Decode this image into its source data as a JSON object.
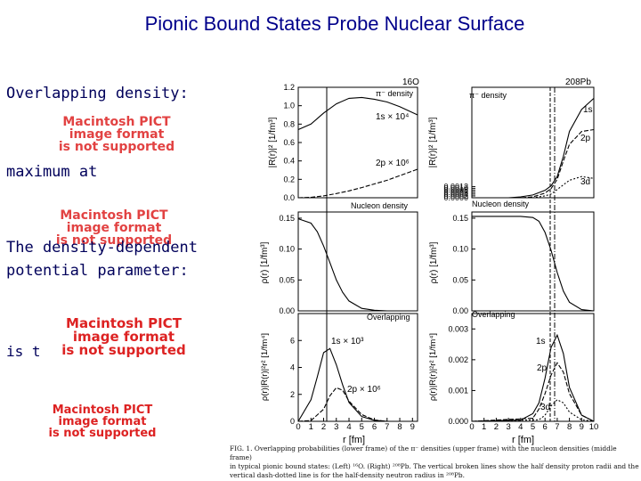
{
  "slide": {
    "title": "Pionic Bound States Probe Nuclear Surface",
    "overlapping_label": "Overlapping density:",
    "maximum_label": "maximum at",
    "param_line1": "The density-dependent",
    "param_line2": "potential parameter:",
    "is_prefix": "is t",
    "pict_placeholder": [
      "Macintosh PICT",
      "image format",
      "is not supported"
    ]
  },
  "figure": {
    "caption_line1": "FIG. 1. Overlapping probabilities (lower frame) of the π⁻ densities (upper frame) with the nucleon densities (middle frame)",
    "caption_line2": "in typical pionic bound states: (Left) ¹⁶O. (Right) ²⁰⁸Pb. The vertical broken lines show the half density proton radii and the",
    "caption_line3": "vertical dash-dotted line is for the half-density neutron radius in ²⁰⁸Pb.",
    "left_nucleus": "16O",
    "right_nucleus": "208Pb",
    "x_axis_label": "r [fm]",
    "x_ticks": [
      "0",
      "1",
      "2",
      "3",
      "4",
      "5",
      "6",
      "7",
      "8",
      "9",
      "10"
    ],
    "frame_titles": {
      "pi_density": "π⁻ density",
      "nucleon_density": "Nucleon density",
      "overlapping": "Overlapping"
    },
    "y_labels": {
      "top": "|R(r)|² [1/fm³]",
      "middle": "ρ(r) [1/fm³]",
      "bottom": "ρ(r)|R(r)|²r² [1/fm⁴]"
    },
    "annotations": {
      "left_top_1s": "1s × 10⁴",
      "left_top_2p": "2p × 10⁶",
      "left_bot_1s": "1s × 10³",
      "left_bot_2p": "2p × 10⁶",
      "right_1s": "1s",
      "right_2p": "2p",
      "right_3d": "3d"
    }
  },
  "chart_data": [
    {
      "type": "line",
      "panel": "16O π⁻ density",
      "ylabel": "|R(r)|² [1/fm³]",
      "xlim": [
        0,
        9.4
      ],
      "ylim": [
        0,
        1.2
      ],
      "yticks": [
        "0.0",
        "0.2",
        "0.4",
        "0.6",
        "0.8",
        "1.0",
        "1.2"
      ],
      "series": [
        {
          "name": "1s × 10⁴",
          "x": [
            0,
            1,
            2,
            3,
            4,
            5,
            6,
            7,
            8,
            9.4
          ],
          "y": [
            0.74,
            0.8,
            0.92,
            1.02,
            1.08,
            1.09,
            1.07,
            1.04,
            0.99,
            0.9
          ]
        },
        {
          "name": "2p × 10⁶",
          "x": [
            0,
            1,
            2,
            3,
            4,
            5,
            6,
            7,
            8,
            9.4
          ],
          "y": [
            0.0,
            0.005,
            0.02,
            0.045,
            0.075,
            0.11,
            0.15,
            0.19,
            0.24,
            0.31
          ]
        }
      ]
    },
    {
      "type": "line",
      "panel": "208Pb π⁻ density",
      "ylabel": "|R(r)|² [1/fm³]",
      "xlim": [
        0,
        10
      ],
      "ylim": [
        0,
        0.012
      ],
      "yticks": [
        "0.0000",
        "0.0002",
        "0.0004",
        "0.0006",
        "0.0008",
        "0.0010",
        "0.0012"
      ],
      "series": [
        {
          "name": "1s",
          "x": [
            0,
            3,
            4,
            5,
            6,
            6.5,
            7,
            7.5,
            8,
            9,
            10
          ],
          "y": [
            0,
            0,
            0.0001,
            0.0003,
            0.0008,
            0.0013,
            0.0023,
            0.0045,
            0.0072,
            0.0096,
            0.0108
          ]
        },
        {
          "name": "2p",
          "x": [
            0,
            4,
            5,
            6,
            6.5,
            7,
            7.5,
            8,
            9,
            10
          ],
          "y": [
            0,
            0,
            0.0001,
            0.0005,
            0.001,
            0.002,
            0.004,
            0.0058,
            0.0072,
            0.0074
          ]
        },
        {
          "name": "3d",
          "x": [
            0,
            5,
            6,
            6.5,
            7,
            7.5,
            8,
            9,
            10
          ],
          "y": [
            0,
            0,
            0.0002,
            0.0004,
            0.0009,
            0.0014,
            0.0019,
            0.0023,
            0.0021
          ]
        }
      ]
    },
    {
      "type": "line",
      "panel": "16O nucleon density",
      "ylabel": "ρ(r) [1/fm³]",
      "xlim": [
        0,
        9.4
      ],
      "ylim": [
        0,
        0.16
      ],
      "yticks": [
        "0.00",
        "0.05",
        "0.10",
        "0.15"
      ],
      "series": [
        {
          "name": "Nucleon density",
          "x": [
            0,
            1,
            1.5,
            2,
            2.5,
            3,
            3.5,
            4,
            5,
            6,
            7,
            8,
            9
          ],
          "y": [
            0.149,
            0.142,
            0.128,
            0.105,
            0.078,
            0.05,
            0.03,
            0.016,
            0.004,
            0.001,
            0.0,
            0.0,
            0.0
          ]
        }
      ]
    },
    {
      "type": "line",
      "panel": "208Pb nucleon density",
      "ylabel": "ρ(r) [1/fm³]",
      "xlim": [
        0,
        10
      ],
      "ylim": [
        0,
        0.16
      ],
      "yticks": [
        "0.00",
        "0.05",
        "0.10",
        "0.15"
      ],
      "series": [
        {
          "name": "Nucleon density",
          "x": [
            0,
            4,
            5,
            5.5,
            6,
            6.5,
            7,
            7.5,
            8,
            9,
            10
          ],
          "y": [
            0.153,
            0.153,
            0.151,
            0.145,
            0.127,
            0.098,
            0.062,
            0.032,
            0.014,
            0.002,
            0.0
          ]
        }
      ]
    },
    {
      "type": "line",
      "panel": "16O overlapping",
      "ylabel": "ρ(r)|R(r)|²r² [1/fm⁴]",
      "xlim": [
        0,
        9.4
      ],
      "ylim": [
        0,
        8
      ],
      "yticks": [
        "0",
        "2",
        "4",
        "6"
      ],
      "series": [
        {
          "name": "1s × 10³",
          "x": [
            0,
            1,
            1.5,
            2,
            2.5,
            3,
            3.5,
            4,
            5,
            6,
            7
          ],
          "y": [
            0,
            1.6,
            3.3,
            5.1,
            5.4,
            4.2,
            2.7,
            1.4,
            0.35,
            0.08,
            0.0
          ]
        },
        {
          "name": "2p × 10⁶",
          "x": [
            0,
            1,
            2,
            2.5,
            3,
            3.5,
            4,
            5,
            6,
            7
          ],
          "y": [
            0,
            0.05,
            0.9,
            1.9,
            2.5,
            2.3,
            1.5,
            0.5,
            0.1,
            0.0
          ]
        }
      ]
    },
    {
      "type": "line",
      "panel": "208Pb overlapping",
      "ylabel": "ρ(r)|R(r)|²r² [1/fm⁴]",
      "xlim": [
        0,
        10
      ],
      "ylim": [
        0,
        0.0035
      ],
      "yticks": [
        "0.000",
        "0.001",
        "0.002",
        "0.003"
      ],
      "series": [
        {
          "name": "1s",
          "x": [
            0,
            4,
            5,
            5.5,
            6,
            6.5,
            7,
            7.5,
            8,
            9,
            10
          ],
          "y": [
            0,
            4e-05,
            0.00025,
            0.0006,
            0.0014,
            0.0024,
            0.0028,
            0.0022,
            0.0011,
            0.0002,
            0.0
          ]
        },
        {
          "name": "2p",
          "x": [
            0,
            5,
            5.5,
            6,
            6.5,
            7,
            7.5,
            8,
            9,
            10
          ],
          "y": [
            0,
            0.0001,
            0.0004,
            0.0009,
            0.0015,
            0.0019,
            0.0016,
            0.0009,
            0.0002,
            0.0
          ]
        },
        {
          "name": "3d",
          "x": [
            0,
            5.5,
            6,
            6.5,
            7,
            7.5,
            8,
            9,
            10
          ],
          "y": [
            0,
            5e-05,
            0.0002,
            0.0005,
            0.0007,
            0.0006,
            0.0003,
            5e-05,
            0.0
          ]
        }
      ]
    }
  ]
}
